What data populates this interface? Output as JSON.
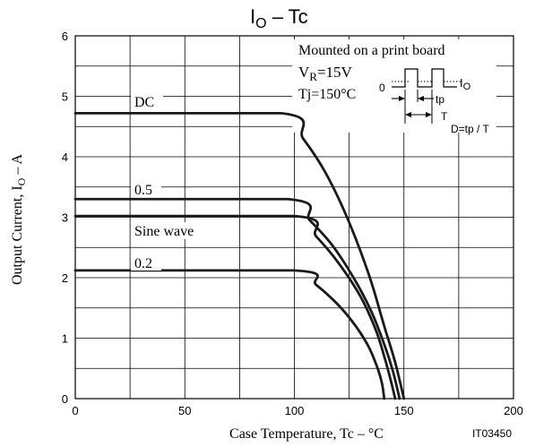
{
  "chart_data": {
    "type": "line",
    "title_main": "I",
    "title_sub": "O",
    "title_rest": "  –  Tc",
    "xlabel": "Case Temperature, Tc  –  °C",
    "ylabel_main": "Output Current, I",
    "ylabel_sub": "O",
    "ylabel_rest": "  –  A",
    "xlim": [
      0,
      200
    ],
    "ylim": [
      0,
      6
    ],
    "x_ticks": [
      "0",
      "50",
      "100",
      "150",
      "200"
    ],
    "y_ticks": [
      "0",
      "1",
      "2",
      "3",
      "4",
      "5",
      "6"
    ],
    "figure_code": "IT03450",
    "grid": true,
    "series": [
      {
        "name": "DC",
        "points": [
          [
            0,
            4.72
          ],
          [
            94,
            4.72
          ],
          [
            104,
            4.3
          ],
          [
            114,
            3.75
          ],
          [
            124,
            3.0
          ],
          [
            134,
            2.05
          ],
          [
            141,
            1.2
          ],
          [
            146,
            0.6
          ],
          [
            150,
            0.0
          ]
        ]
      },
      {
        "name": "0.5",
        "points": [
          [
            0,
            3.3
          ],
          [
            97,
            3.3
          ],
          [
            107,
            2.95
          ],
          [
            117,
            2.55
          ],
          [
            127,
            2.0
          ],
          [
            135,
            1.45
          ],
          [
            141,
            0.9
          ],
          [
            145,
            0.45
          ],
          [
            148,
            0.0
          ]
        ]
      },
      {
        "name": "Sine wave",
        "points": [
          [
            0,
            3.02
          ],
          [
            100,
            3.02
          ],
          [
            110,
            2.68
          ],
          [
            120,
            2.25
          ],
          [
            130,
            1.7
          ],
          [
            137,
            1.15
          ],
          [
            141,
            0.7
          ],
          [
            144,
            0.3
          ],
          [
            146,
            0.0
          ]
        ]
      },
      {
        "name": "0.2",
        "points": [
          [
            0,
            2.12
          ],
          [
            100,
            2.12
          ],
          [
            110,
            1.88
          ],
          [
            120,
            1.55
          ],
          [
            128,
            1.2
          ],
          [
            134,
            0.85
          ],
          [
            138,
            0.5
          ],
          [
            140,
            0.25
          ],
          [
            141,
            0.0
          ]
        ]
      }
    ],
    "annotation": {
      "line1": "Mounted on a print board",
      "line2_main": "V",
      "line2_sub": "R",
      "line2_rest": "=15V",
      "line3": "Tj=150°C",
      "pulse_zero": "0",
      "pulse_io_main": "I",
      "pulse_io_sub": "O",
      "pulse_tp": "tp",
      "pulse_T": "T",
      "pulse_duty": "D=tp / T"
    }
  }
}
